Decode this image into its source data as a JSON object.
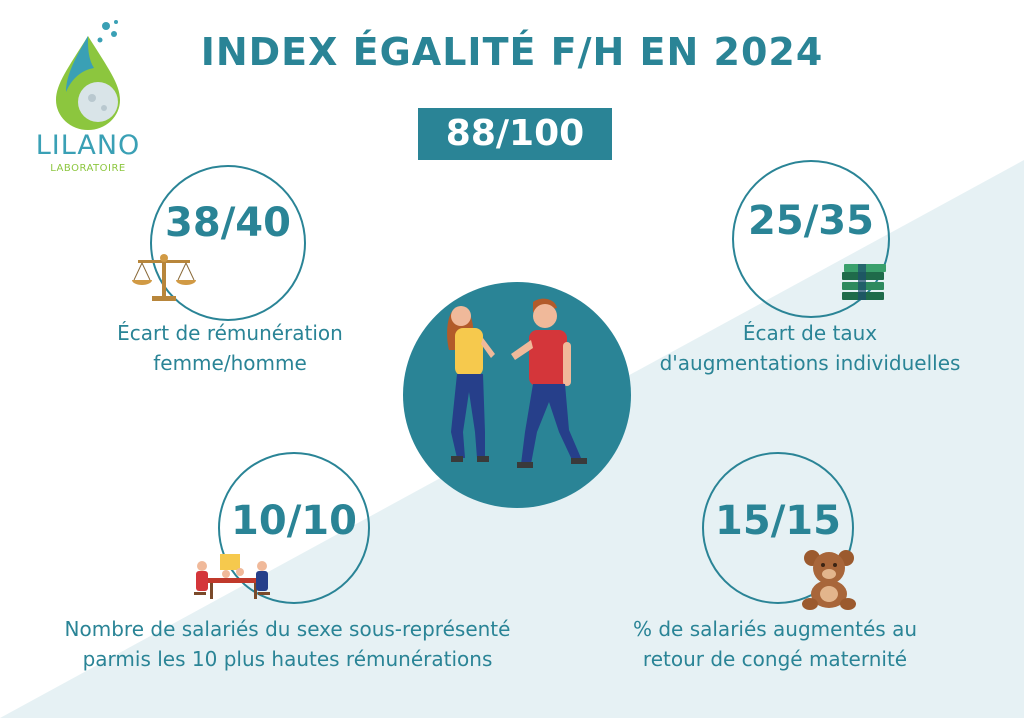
{
  "logo": {
    "name": "LILANO",
    "subtitle": "LABORATOIRE"
  },
  "title": "INDEX ÉGALITÉ F/H EN 2024",
  "total_score": "88/100",
  "indicators": [
    {
      "value": "38/40",
      "label_line1": "Écart de rémunération",
      "label_line2": "femme/homme",
      "icon": "scales-icon"
    },
    {
      "value": "25/35",
      "label_line1": "Écart de taux",
      "label_line2": "d'augmentations individuelles",
      "icon": "money-stack-icon"
    },
    {
      "value": "10/10",
      "label_line1": "Nombre de salariés du sexe sous-représenté",
      "label_line2": "parmis les 10 plus hautes rémunérations",
      "icon": "meeting-icon"
    },
    {
      "value": "15/15",
      "label_line1": "% de salariés augmentés au",
      "label_line2": "retour de congé maternité",
      "icon": "teddy-bear-icon"
    }
  ],
  "colors": {
    "primary": "#2a8496",
    "background_light": "#e6f1f4",
    "logo_blue": "#3aa0b5",
    "logo_green": "#8cc63e"
  }
}
